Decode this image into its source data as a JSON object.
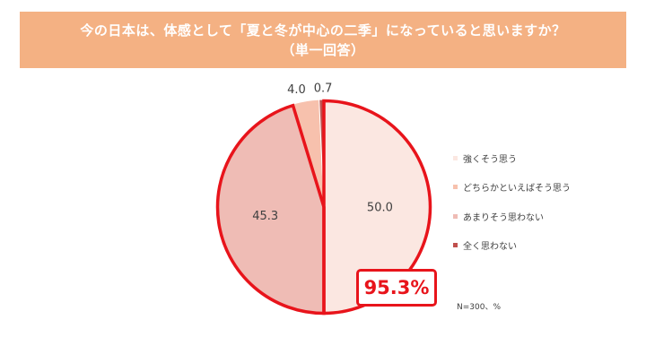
{
  "header": {
    "title_line1": "今の日本は、体感として「夏と冬が中心の二季」になっていると思いますか？",
    "title_line2": "（単一回答）"
  },
  "chart_data": {
    "type": "pie",
    "categories": [
      "強くそう思う",
      "どちらかといえばそう思う",
      "あまりそう思わない",
      "全く思わない"
    ],
    "values": [
      50.0,
      4.0,
      45.3,
      0.7
    ],
    "value_labels": [
      "50.0",
      "4.0",
      "45.3",
      "0.7"
    ],
    "colors": [
      "#fbe7e1",
      "#f7c1ad",
      "#efbcb5",
      "#c0504d"
    ],
    "draw_order": [
      0,
      2,
      1,
      3
    ],
    "legend": {
      "placement": "right",
      "items": [
        {
          "label": "強くそう思う",
          "color": "#fbe7e1"
        },
        {
          "label": "どちらかといえばそう思う",
          "color": "#f7c1ad"
        },
        {
          "label": "あまりそう思わない",
          "color": "#efbcb5"
        },
        {
          "label": "全く思わない",
          "color": "#c0504d"
        }
      ]
    },
    "highlight": {
      "label": "95.3%",
      "color": "#e8141b"
    },
    "note": "N=300、%"
  }
}
